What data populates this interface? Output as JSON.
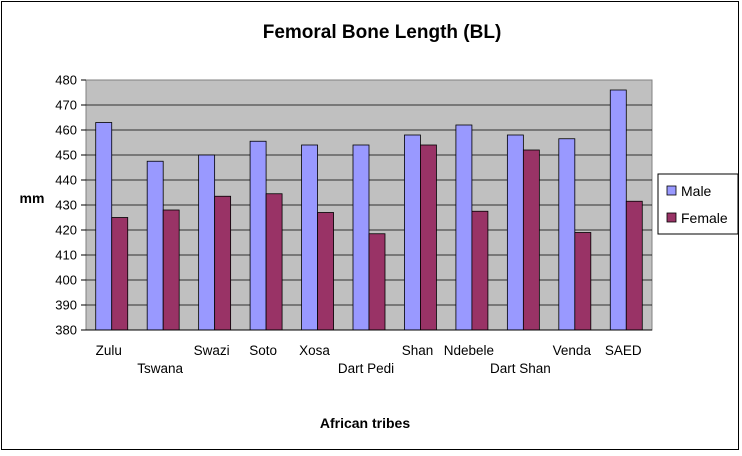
{
  "chart_data": {
    "type": "bar",
    "title": "Femoral Bone Length (BL)",
    "xlabel": "African tribes",
    "ylabel": "mm",
    "ylim": [
      380,
      480
    ],
    "ytick_step": 10,
    "grid": true,
    "legend_position": "right",
    "categories": [
      "Zulu",
      "Tswana",
      "Swazi",
      "Soto",
      "Xosa",
      "Dart Pedi",
      "Shan",
      "Ndebele",
      "Dart Shan",
      "Venda",
      "SAED"
    ],
    "series": [
      {
        "name": "Male",
        "color": "#9999ff",
        "values": [
          463,
          447.5,
          450,
          455.5,
          454,
          454,
          458,
          462,
          458,
          456.5,
          476
        ]
      },
      {
        "name": "Female",
        "color": "#993366",
        "values": [
          425,
          428,
          433.5,
          434.5,
          427,
          418.5,
          454,
          427.5,
          452,
          419,
          431.5
        ]
      }
    ]
  }
}
